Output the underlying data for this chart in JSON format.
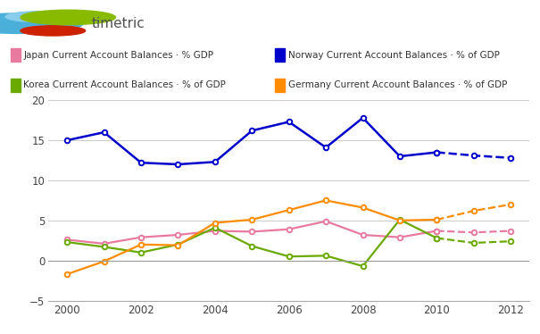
{
  "years_solid": [
    2000,
    2001,
    2002,
    2003,
    2004,
    2005,
    2006,
    2007,
    2008,
    2009,
    2010
  ],
  "years_dashed": [
    2010,
    2011,
    2012
  ],
  "norway_solid": [
    15.0,
    16.0,
    12.2,
    12.0,
    12.3,
    16.2,
    17.3,
    14.1,
    17.8,
    13.0,
    13.5
  ],
  "norway_dashed": [
    13.5,
    13.1,
    12.8
  ],
  "japan_solid": [
    2.6,
    2.1,
    2.9,
    3.2,
    3.7,
    3.6,
    3.9,
    4.9,
    3.2,
    2.9,
    3.7
  ],
  "japan_dashed": [
    3.7,
    3.5,
    3.7
  ],
  "korea_solid": [
    2.3,
    1.7,
    1.0,
    2.0,
    4.1,
    1.8,
    0.5,
    0.6,
    -0.7,
    5.1,
    2.8
  ],
  "korea_dashed": [
    2.8,
    2.2,
    2.4
  ],
  "germany_solid": [
    -1.7,
    -0.1,
    2.0,
    1.9,
    4.7,
    5.1,
    6.3,
    7.5,
    6.6,
    5.0,
    5.1
  ],
  "germany_dashed": [
    5.1,
    6.2,
    7.0
  ],
  "norway_color": "#0000cc",
  "japan_color": "#e87aa0",
  "korea_color": "#6aaa00",
  "germany_color": "#ff8c00",
  "ylim": [
    -5,
    20
  ],
  "yticks": [
    -5,
    0,
    5,
    10,
    15,
    20
  ],
  "xlim": [
    1999.5,
    2012.5
  ],
  "xticks": [
    2000,
    2002,
    2004,
    2006,
    2008,
    2010,
    2012
  ],
  "grid_color": "#cccccc",
  "bg_color": "#ffffff",
  "legend_japan": "Japan Current Account Balances · % GDP",
  "legend_norway": "Norway Current Account Balances · % of GDP",
  "legend_korea": "Korea Current Account Balances · % of GDP",
  "legend_germany": "Germany Current Account Balances · % of GDP",
  "logo_blue_color": "#4ab0d9",
  "logo_lightblue_color": "#88ccee",
  "logo_red_color": "#cc2200",
  "logo_green_color": "#88bb00",
  "logo_text_color": "#505050"
}
